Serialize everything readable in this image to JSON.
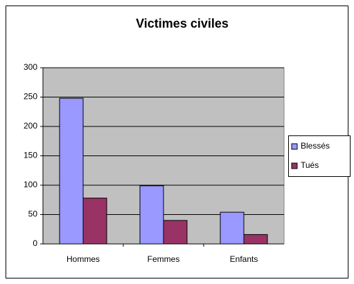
{
  "chart_data": {
    "type": "bar",
    "title": "Victimes civiles",
    "categories": [
      "Hommes",
      "Femmes",
      "Enfants"
    ],
    "series": [
      {
        "name": "Blessés",
        "color": "#9999ff",
        "values": [
          248,
          99,
          54
        ]
      },
      {
        "name": "Tués",
        "color": "#993366",
        "values": [
          78,
          40,
          16
        ]
      }
    ],
    "ylim": [
      0,
      300
    ],
    "yticks": [
      0,
      50,
      100,
      150,
      200,
      250,
      300
    ],
    "grid": true,
    "legend": "right"
  }
}
